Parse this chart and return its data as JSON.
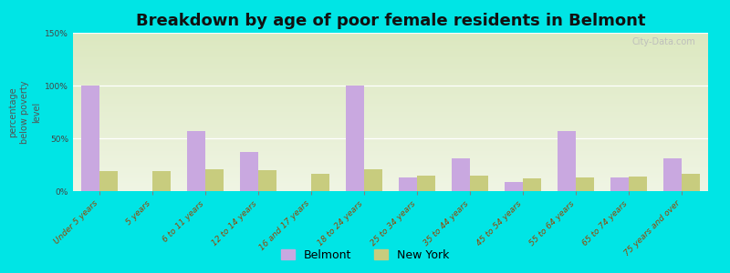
{
  "title": "Breakdown by age of poor female residents in Belmont",
  "ylabel": "percentage\nbelow poverty\nlevel",
  "categories": [
    "Under 5 years",
    "5 years",
    "6 to 11 years",
    "12 to 14 years",
    "16 and 17 years",
    "18 to 24 years",
    "25 to 34 years",
    "35 to 44 years",
    "45 to 54 years",
    "55 to 64 years",
    "65 to 74 years",
    "75 years and over"
  ],
  "belmont": [
    100,
    0,
    57,
    37,
    0,
    100,
    13,
    31,
    9,
    57,
    13,
    31
  ],
  "newyork": [
    19,
    19,
    21,
    20,
    16,
    21,
    15,
    15,
    12,
    13,
    14,
    16
  ],
  "ylim": [
    0,
    150
  ],
  "yticks": [
    0,
    50,
    100,
    150
  ],
  "ytick_labels": [
    "0%",
    "50%",
    "100%",
    "150%"
  ],
  "bar_width": 0.35,
  "belmont_color": "#c9a8e0",
  "newyork_color": "#c8cc7e",
  "plot_bg_color": "#eef3dc",
  "outer_bg": "#00e5e5",
  "title_fontsize": 13,
  "axis_label_fontsize": 7,
  "tick_fontsize": 6.5,
  "legend_fontsize": 9,
  "watermark": "City-Data.com"
}
